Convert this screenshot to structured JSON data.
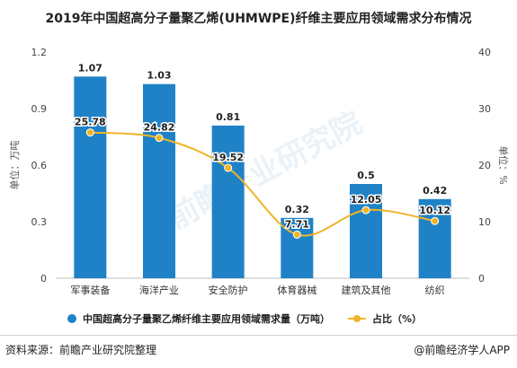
{
  "title": "2019年中国超高分子量聚乙烯(UHMWPE)纤维主要应用领域需求分布情况",
  "source": "资料来源：前瞻产业研究院整理",
  "brand": "@前瞻经济学人APP",
  "watermark": "前瞻产业研究院",
  "chart_data": {
    "type": "bar+line",
    "categories": [
      "军事装备",
      "海洋产业",
      "安全防护",
      "体育器械",
      "建筑及其他",
      "纺织"
    ],
    "series": [
      {
        "name": "中国超高分子量聚乙烯纤维主要应用领域需求量（万吨）",
        "type": "bar",
        "axis": "left",
        "color": "#1f82c6",
        "values": [
          1.07,
          1.03,
          0.81,
          0.32,
          0.5,
          0.42
        ],
        "labels": [
          "1.07",
          "1.03",
          "0.81",
          "0.32",
          "0.5",
          "0.42"
        ]
      },
      {
        "name": "占比（%）",
        "type": "line",
        "axis": "right",
        "color": "#f0b429",
        "values": [
          25.78,
          24.82,
          19.52,
          7.71,
          12.05,
          10.12
        ],
        "labels": [
          "25.78",
          "24.82",
          "19.52",
          "7.71",
          "12.05",
          "10.12"
        ]
      }
    ],
    "y_left": {
      "label": "单位：万吨",
      "ylim": [
        0,
        1.2
      ],
      "ticks": [
        "0",
        "0.3",
        "0.6",
        "0.9",
        "1.2"
      ],
      "tick_values": [
        0,
        0.3,
        0.6,
        0.9,
        1.2
      ]
    },
    "y_right": {
      "label": "单位：%",
      "ylim": [
        0,
        40
      ],
      "ticks": [
        "0",
        "10",
        "20",
        "30",
        "40"
      ],
      "tick_values": [
        0,
        10,
        20,
        30,
        40
      ]
    },
    "grid": false,
    "legend": "bottom"
  }
}
